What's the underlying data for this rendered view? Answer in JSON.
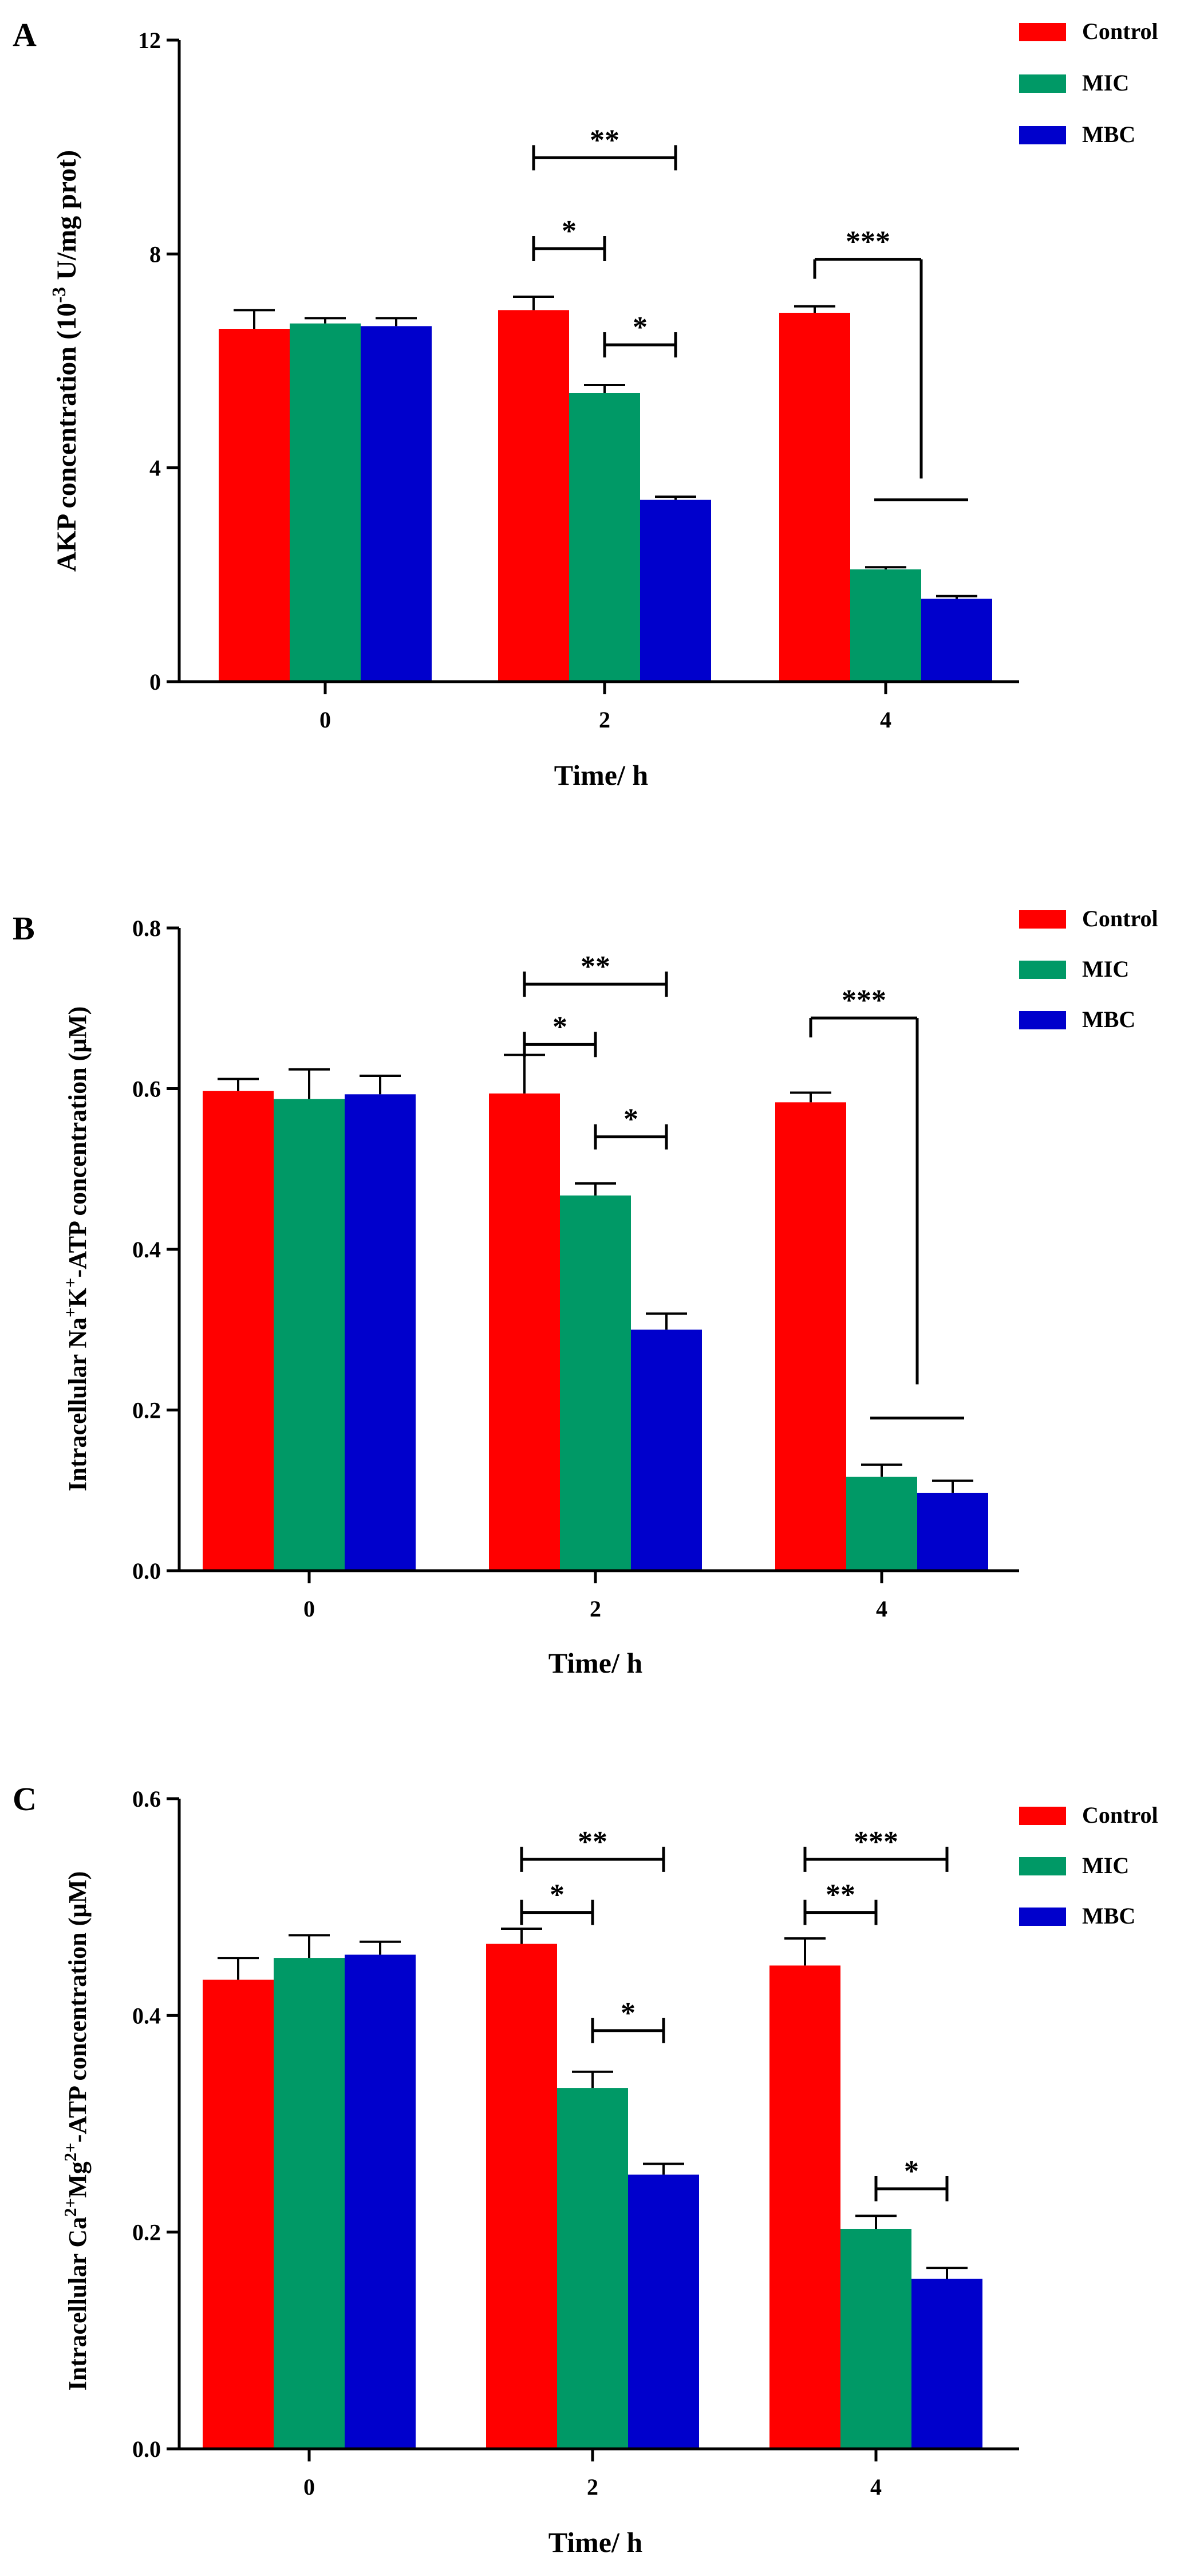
{
  "colors": {
    "Control": "#ff0000",
    "MIC": "#009966",
    "MBC": "#0000cc"
  },
  "legend_labels": [
    "Control",
    "MIC",
    "MBC"
  ],
  "chart_data": [
    {
      "panel": "A",
      "type": "bar",
      "xlabel": "Time/ h",
      "ylabel": {
        "pre": "AKP concentration (10",
        "sup": "-3",
        "post": " U/mg prot)"
      },
      "categories": [
        "0",
        "2",
        "4"
      ],
      "ylim": [
        0,
        12
      ],
      "yticks": [
        0,
        4,
        8,
        12
      ],
      "ytick_labels": [
        "0",
        "4",
        "8",
        "12"
      ],
      "legend_position": "top-right",
      "series": [
        {
          "name": "Control",
          "values": [
            6.6,
            6.95,
            6.9
          ],
          "errors": [
            0.35,
            0.25,
            0.12
          ]
        },
        {
          "name": "MIC",
          "values": [
            6.7,
            5.4,
            2.1
          ],
          "errors": [
            0.1,
            0.15,
            0.04
          ]
        },
        {
          "name": "MBC",
          "values": [
            6.65,
            3.4,
            1.55
          ],
          "errors": [
            0.15,
            0.06,
            0.05
          ]
        }
      ],
      "significance": [
        {
          "category": 1,
          "from": 0,
          "to": 2,
          "y": 9.8,
          "label": "**",
          "style": "bracket"
        },
        {
          "category": 1,
          "from": 0,
          "to": 1,
          "y": 8.1,
          "label": "*",
          "style": "bracket"
        },
        {
          "category": 1,
          "from": 1,
          "to": 2,
          "y": 6.3,
          "label": "*",
          "style": "bracket"
        },
        {
          "category": 2,
          "from": 0,
          "to": 1.5,
          "y": 7.9,
          "label": "***",
          "style": "elbow",
          "drop": 3.8,
          "baseline": 3.4
        }
      ]
    },
    {
      "panel": "B",
      "type": "bar",
      "xlabel": "Time/ h",
      "ylabel": {
        "pre": "Intracellular Na",
        "sup1": "+",
        "mid": "K",
        "sup2": "+",
        "post": "-ATP concentration (μM)"
      },
      "categories": [
        "0",
        "2",
        "4"
      ],
      "ylim": [
        0,
        0.8
      ],
      "yticks": [
        0,
        0.2,
        0.4,
        0.6,
        0.8
      ],
      "ytick_labels": [
        "0.0",
        "0.2",
        "0.4",
        "0.6",
        "0.8"
      ],
      "legend_position": "top-right",
      "series": [
        {
          "name": "Control",
          "values": [
            0.597,
            0.594,
            0.583
          ],
          "errors": [
            0.015,
            0.048,
            0.012
          ]
        },
        {
          "name": "MIC",
          "values": [
            0.587,
            0.467,
            0.117
          ],
          "errors": [
            0.037,
            0.015,
            0.015
          ]
        },
        {
          "name": "MBC",
          "values": [
            0.593,
            0.3,
            0.097
          ],
          "errors": [
            0.023,
            0.02,
            0.015
          ]
        }
      ],
      "significance": [
        {
          "category": 1,
          "from": 0,
          "to": 2,
          "y": 0.73,
          "label": "**",
          "style": "bracket"
        },
        {
          "category": 1,
          "from": 0,
          "to": 1,
          "y": 0.655,
          "label": "*",
          "style": "bracket"
        },
        {
          "category": 1,
          "from": 1,
          "to": 2,
          "y": 0.54,
          "label": "*",
          "style": "bracket"
        },
        {
          "category": 2,
          "from": 0,
          "to": 1.5,
          "y": 0.688,
          "label": "***",
          "style": "elbow",
          "drop": 0.232,
          "baseline": 0.19
        }
      ]
    },
    {
      "panel": "C",
      "type": "bar",
      "xlabel": "Time/ h",
      "ylabel": {
        "pre": "Intracellular Ca",
        "sup1": "2+",
        "mid": "Mg",
        "sup2": "2+",
        "post": "-ATP concentration (μM)"
      },
      "categories": [
        "0",
        "2",
        "4"
      ],
      "ylim": [
        0,
        0.6
      ],
      "yticks": [
        0,
        0.2,
        0.4,
        0.6
      ],
      "ytick_labels": [
        "0.0",
        "0.2",
        "0.4",
        "0.6"
      ],
      "legend_position": "top-right",
      "series": [
        {
          "name": "Control",
          "values": [
            0.433,
            0.466,
            0.446
          ],
          "errors": [
            0.02,
            0.014,
            0.025
          ]
        },
        {
          "name": "MIC",
          "values": [
            0.453,
            0.333,
            0.203
          ],
          "errors": [
            0.021,
            0.015,
            0.012
          ]
        },
        {
          "name": "MBC",
          "values": [
            0.456,
            0.253,
            0.157
          ],
          "errors": [
            0.012,
            0.01,
            0.01
          ]
        }
      ],
      "significance": [
        {
          "category": 1,
          "from": 0,
          "to": 2,
          "y": 0.544,
          "label": "**",
          "style": "bracket"
        },
        {
          "category": 1,
          "from": 0,
          "to": 1,
          "y": 0.495,
          "label": "*",
          "style": "bracket"
        },
        {
          "category": 1,
          "from": 1,
          "to": 2,
          "y": 0.386,
          "label": "*",
          "style": "bracket"
        },
        {
          "category": 2,
          "from": 0,
          "to": 2,
          "y": 0.544,
          "label": "***",
          "style": "bracket"
        },
        {
          "category": 2,
          "from": 0,
          "to": 1,
          "y": 0.495,
          "label": "**",
          "style": "bracket"
        },
        {
          "category": 2,
          "from": 1,
          "to": 2,
          "y": 0.24,
          "label": "*",
          "style": "bracket"
        }
      ]
    }
  ]
}
